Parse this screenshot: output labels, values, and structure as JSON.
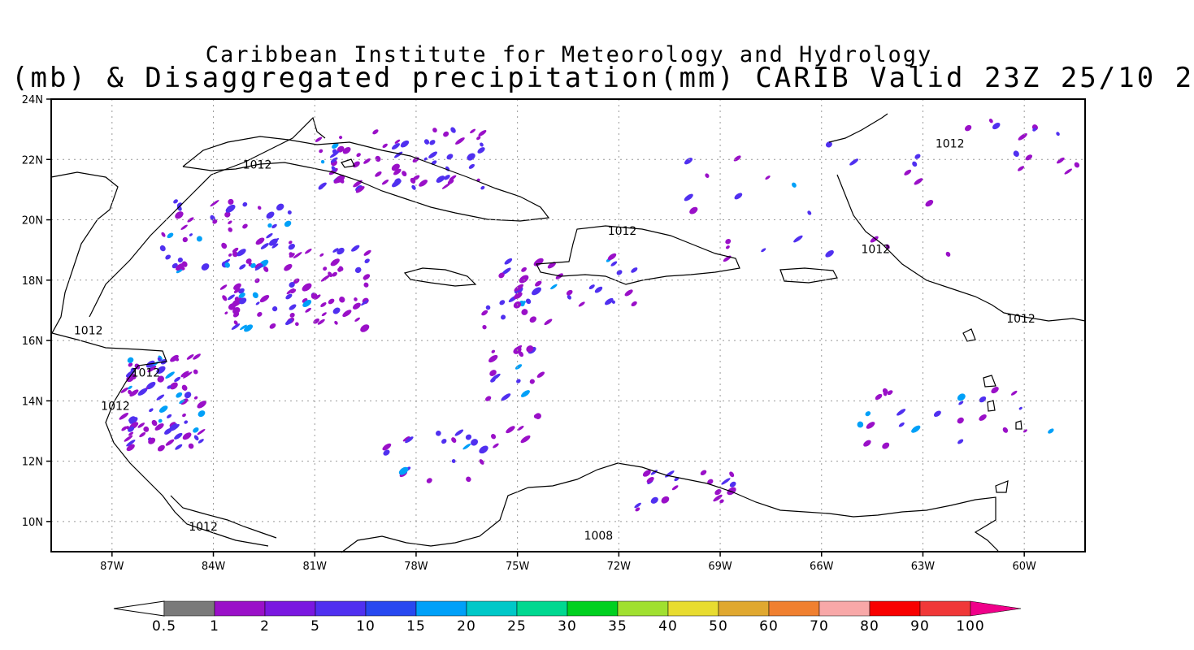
{
  "title_line1": "Caribbean Institute for Meteorology and Hydrology",
  "title_line2": "(mb) & Disaggregated precipitation(mm) CARIB Valid 23Z 25/10 2",
  "map": {
    "lon_range": [
      -88.8,
      -58.2
    ],
    "lat_range": [
      9.0,
      24.0
    ],
    "lon_ticks": [
      "87W",
      "84W",
      "81W",
      "78W",
      "75W",
      "72W",
      "69W",
      "66W",
      "63W",
      "60W"
    ],
    "lon_tick_values": [
      -87,
      -84,
      -81,
      -78,
      -75,
      -72,
      -69,
      -66,
      -63,
      -60
    ],
    "lat_ticks": [
      "24N",
      "22N",
      "20N",
      "18N",
      "16N",
      "14N",
      "12N",
      "10N"
    ],
    "lat_tick_values": [
      24,
      22,
      20,
      18,
      16,
      14,
      12,
      10
    ],
    "gridlines": "dotted"
  },
  "isobars": [
    {
      "label": "1012",
      "lon": -82.7,
      "lat": 21.7
    },
    {
      "label": "1012",
      "lon": -62.2,
      "lat": 22.4
    },
    {
      "label": "1012",
      "lon": -71.9,
      "lat": 19.5
    },
    {
      "label": "1012",
      "lon": -64.4,
      "lat": 18.9
    },
    {
      "label": "1012",
      "lon": -60.1,
      "lat": 16.6
    },
    {
      "label": "1012",
      "lon": -87.7,
      "lat": 16.2
    },
    {
      "label": "1012",
      "lon": -86.0,
      "lat": 14.8
    },
    {
      "label": "1012",
      "lon": -86.9,
      "lat": 13.7
    },
    {
      "label": "1012",
      "lon": -84.3,
      "lat": 9.7
    },
    {
      "label": "1008",
      "lon": -72.6,
      "lat": 9.4
    }
  ],
  "colorbar": {
    "labels": [
      "0.5",
      "1",
      "2",
      "5",
      "10",
      "15",
      "20",
      "25",
      "30",
      "35",
      "40",
      "50",
      "60",
      "70",
      "80",
      "90",
      "100"
    ],
    "colors": [
      "#7a7a7a",
      "#9a10c8",
      "#7a18e0",
      "#5030f0",
      "#2848f0",
      "#00a0f8",
      "#00c8c8",
      "#00d890",
      "#00d020",
      "#a0e030",
      "#e8dc30",
      "#e0a830",
      "#f08030",
      "#f8a8a8",
      "#f80000",
      "#f03838",
      "#f0008a"
    ]
  },
  "colors": {
    "coast": "#000000",
    "precip_light": "#9a10c8",
    "precip_medium": "#5030f0",
    "precip_heavy": "#00a0f8"
  }
}
